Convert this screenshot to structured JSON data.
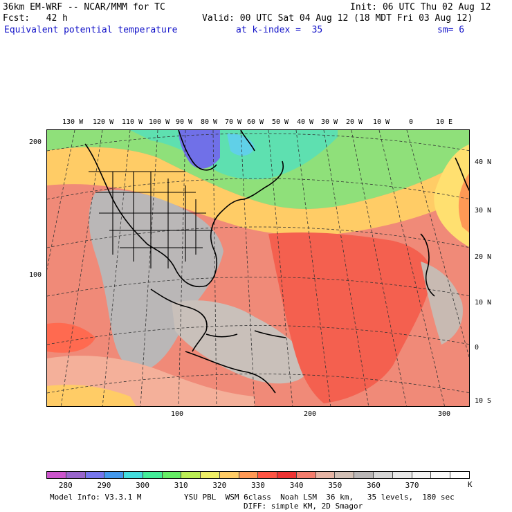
{
  "header": {
    "title": "36km EM-WRF -- NCAR/MMM for TC",
    "init": "Init: 06 UTC Thu 02 Aug 12",
    "fcst": "Fcst:   42 h",
    "valid": "Valid: 00 UTC Sat 04 Aug 12 (18 MDT Fri 03 Aug 12)",
    "field": "Equivalent potential temperature",
    "level": "at k-index =  35",
    "smooth": "sm= 6"
  },
  "map": {
    "longitude_labels": [
      "130 W",
      "120 W",
      "110 W",
      "100 W",
      "90 W",
      "80 W",
      "70 W",
      "60 W",
      "50 W",
      "40 W",
      "30 W",
      "20 W",
      "10 W",
      "0",
      "10 E"
    ],
    "latitude_labels": [
      "40 N",
      "30 N",
      "20 N",
      "10 N",
      "0",
      "10 S"
    ],
    "y_grid_labels": [
      "200",
      "100"
    ],
    "x_grid_labels": [
      "100",
      "200",
      "300"
    ]
  },
  "colorbar": {
    "unit": "K",
    "labels": [
      "280",
      "290",
      "300",
      "310",
      "320",
      "330",
      "340",
      "350",
      "360",
      "370"
    ],
    "colors": [
      "#cc55cc",
      "#9966cc",
      "#7777ee",
      "#4499ee",
      "#44dddd",
      "#44ee99",
      "#66ee66",
      "#bbee55",
      "#eeee66",
      "#ffcc66",
      "#ff9955",
      "#ff5544",
      "#ee3333",
      "#f47d6d",
      "#e6b5a5",
      "#d2c0b6",
      "#bab7b7",
      "#d7d7d7",
      "#e9e9e9",
      "#f4f4f4",
      "#fbfbfb",
      "#ffffff"
    ]
  },
  "footer": {
    "model_info": "Model Info: V3.3.1 M",
    "physics": "YSU PBL  WSM 6class  Noah LSM  36 km,   35 levels,  180 sec",
    "diffusion": "DIFF: simple KM, 2D Smagor"
  }
}
